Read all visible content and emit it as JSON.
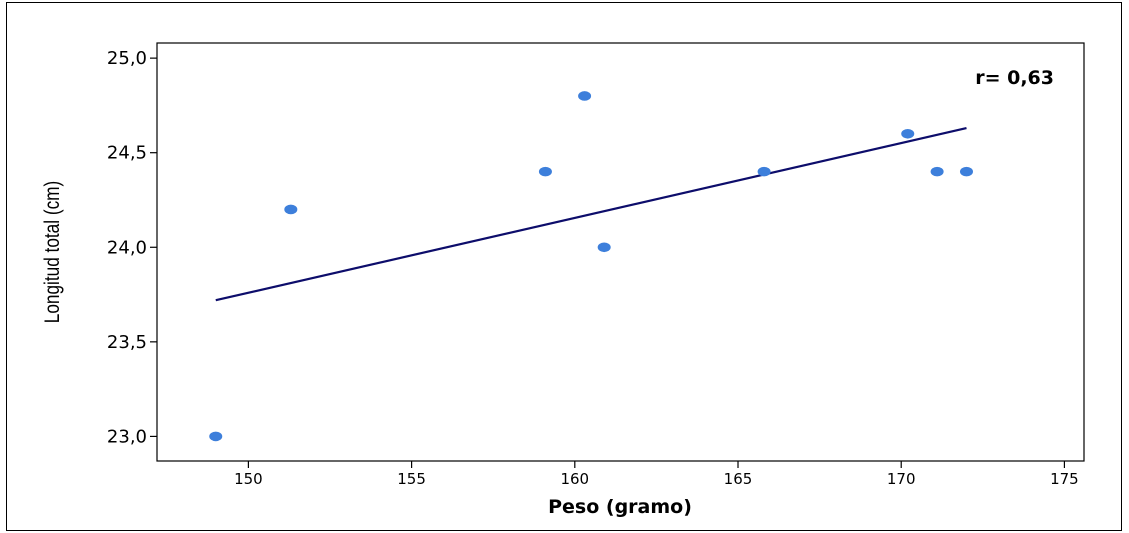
{
  "chart_data": {
    "type": "scatter",
    "title": "",
    "xlabel": "Peso (gramo)",
    "ylabel": "Longitud total (cm)",
    "xlim": [
      147.2,
      175.6
    ],
    "ylim": [
      22.87,
      25.08
    ],
    "xticks": [
      150,
      155,
      160,
      165,
      170,
      175
    ],
    "xtick_labels": [
      "150",
      "155",
      "160",
      "165",
      "170",
      "175"
    ],
    "yticks": [
      23.0,
      23.5,
      24.0,
      24.5,
      25.0
    ],
    "ytick_labels": [
      "23,0",
      "23,5",
      "24,0",
      "24,5",
      "25,0"
    ],
    "points": [
      {
        "x": 149.0,
        "y": 23.0
      },
      {
        "x": 151.3,
        "y": 24.2
      },
      {
        "x": 159.1,
        "y": 24.4
      },
      {
        "x": 160.3,
        "y": 24.8
      },
      {
        "x": 160.9,
        "y": 24.0
      },
      {
        "x": 165.8,
        "y": 24.4
      },
      {
        "x": 170.2,
        "y": 24.6
      },
      {
        "x": 171.1,
        "y": 24.4
      },
      {
        "x": 172.0,
        "y": 24.4
      }
    ],
    "fit_line": {
      "x": [
        149.0,
        172.0
      ],
      "y": [
        23.72,
        24.63
      ]
    },
    "annotation": "r= 0,63",
    "grid": false,
    "point_color": "#3d7fdb",
    "line_color": "#0d0d6b"
  }
}
